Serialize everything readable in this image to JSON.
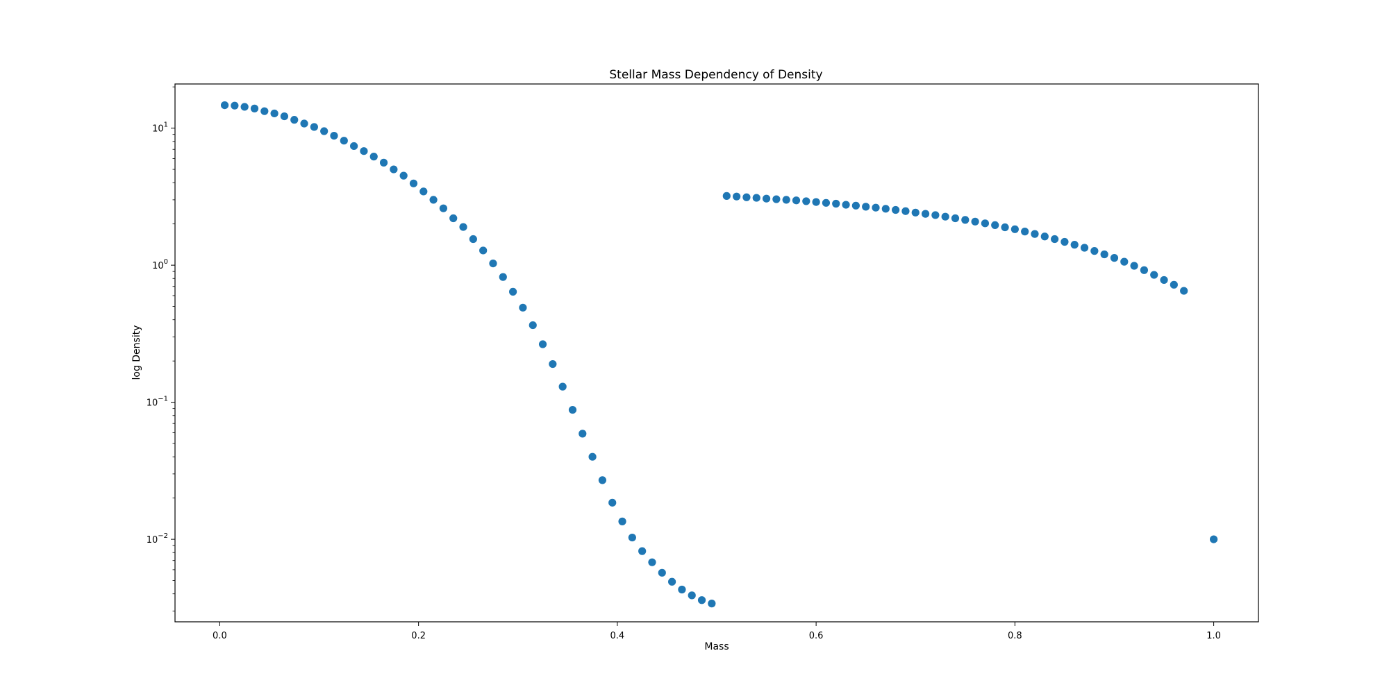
{
  "chart_data": {
    "type": "scatter",
    "title": "Stellar Mass Dependency of Density",
    "xlabel": "Mass",
    "ylabel": "log Density",
    "xlim": [
      -0.045,
      1.045
    ],
    "ylim": [
      0.0025,
      21
    ],
    "yscale": "log",
    "grid": false,
    "marker_color": "#1f77b4",
    "x_ticks": [
      {
        "value": 0.0,
        "label": "0.0"
      },
      {
        "value": 0.2,
        "label": "0.2"
      },
      {
        "value": 0.4,
        "label": "0.4"
      },
      {
        "value": 0.6,
        "label": "0.6"
      },
      {
        "value": 0.8,
        "label": "0.8"
      },
      {
        "value": 1.0,
        "label": "1.0"
      }
    ],
    "y_ticks": [
      {
        "value": 0.01,
        "base": "10",
        "exp": "−2"
      },
      {
        "value": 0.1,
        "base": "10",
        "exp": "−1"
      },
      {
        "value": 1,
        "base": "10",
        "exp": "0"
      },
      {
        "value": 10,
        "base": "10",
        "exp": "1"
      }
    ],
    "series": [
      {
        "points": [
          [
            0.005,
            14.7
          ],
          [
            0.015,
            14.6
          ],
          [
            0.025,
            14.3
          ],
          [
            0.035,
            13.9
          ],
          [
            0.045,
            13.3
          ],
          [
            0.055,
            12.8
          ],
          [
            0.065,
            12.2
          ],
          [
            0.075,
            11.5
          ],
          [
            0.085,
            10.8
          ],
          [
            0.095,
            10.2
          ],
          [
            0.105,
            9.5
          ],
          [
            0.115,
            8.8
          ],
          [
            0.125,
            8.1
          ],
          [
            0.135,
            7.4
          ],
          [
            0.145,
            6.8
          ],
          [
            0.155,
            6.2
          ],
          [
            0.165,
            5.6
          ],
          [
            0.175,
            5.0
          ],
          [
            0.185,
            4.5
          ],
          [
            0.195,
            3.95
          ],
          [
            0.205,
            3.45
          ],
          [
            0.215,
            3.0
          ],
          [
            0.225,
            2.6
          ],
          [
            0.235,
            2.2
          ],
          [
            0.245,
            1.9
          ],
          [
            0.255,
            1.55
          ],
          [
            0.265,
            1.28
          ],
          [
            0.275,
            1.03
          ],
          [
            0.285,
            0.82
          ],
          [
            0.295,
            0.64
          ],
          [
            0.305,
            0.49
          ],
          [
            0.315,
            0.365
          ],
          [
            0.325,
            0.265
          ],
          [
            0.335,
            0.19
          ],
          [
            0.345,
            0.13
          ],
          [
            0.355,
            0.088
          ],
          [
            0.365,
            0.059
          ],
          [
            0.375,
            0.04
          ],
          [
            0.385,
            0.027
          ],
          [
            0.395,
            0.0185
          ],
          [
            0.405,
            0.0135
          ],
          [
            0.415,
            0.0103
          ],
          [
            0.425,
            0.0082
          ],
          [
            0.435,
            0.0068
          ],
          [
            0.445,
            0.0057
          ],
          [
            0.455,
            0.0049
          ],
          [
            0.465,
            0.0043
          ],
          [
            0.475,
            0.0039
          ],
          [
            0.485,
            0.0036
          ],
          [
            0.495,
            0.0034
          ],
          [
            0.51,
            3.2
          ],
          [
            0.52,
            3.17
          ],
          [
            0.53,
            3.13
          ],
          [
            0.54,
            3.1
          ],
          [
            0.55,
            3.06
          ],
          [
            0.56,
            3.03
          ],
          [
            0.57,
            3.0
          ],
          [
            0.58,
            2.97
          ],
          [
            0.59,
            2.93
          ],
          [
            0.6,
            2.89
          ],
          [
            0.61,
            2.85
          ],
          [
            0.62,
            2.81
          ],
          [
            0.63,
            2.76
          ],
          [
            0.64,
            2.72
          ],
          [
            0.65,
            2.67
          ],
          [
            0.66,
            2.63
          ],
          [
            0.67,
            2.58
          ],
          [
            0.68,
            2.53
          ],
          [
            0.69,
            2.48
          ],
          [
            0.7,
            2.42
          ],
          [
            0.71,
            2.37
          ],
          [
            0.72,
            2.32
          ],
          [
            0.73,
            2.26
          ],
          [
            0.74,
            2.2
          ],
          [
            0.75,
            2.14
          ],
          [
            0.76,
            2.08
          ],
          [
            0.77,
            2.02
          ],
          [
            0.78,
            1.96
          ],
          [
            0.79,
            1.89
          ],
          [
            0.8,
            1.83
          ],
          [
            0.81,
            1.76
          ],
          [
            0.82,
            1.69
          ],
          [
            0.83,
            1.62
          ],
          [
            0.84,
            1.55
          ],
          [
            0.85,
            1.48
          ],
          [
            0.86,
            1.41
          ],
          [
            0.87,
            1.34
          ],
          [
            0.88,
            1.27
          ],
          [
            0.89,
            1.2
          ],
          [
            0.9,
            1.13
          ],
          [
            0.91,
            1.06
          ],
          [
            0.92,
            0.99
          ],
          [
            0.93,
            0.92
          ],
          [
            0.94,
            0.85
          ],
          [
            0.95,
            0.78
          ],
          [
            0.96,
            0.72
          ],
          [
            0.97,
            0.65
          ],
          [
            1.0,
            0.01
          ]
        ]
      }
    ]
  }
}
